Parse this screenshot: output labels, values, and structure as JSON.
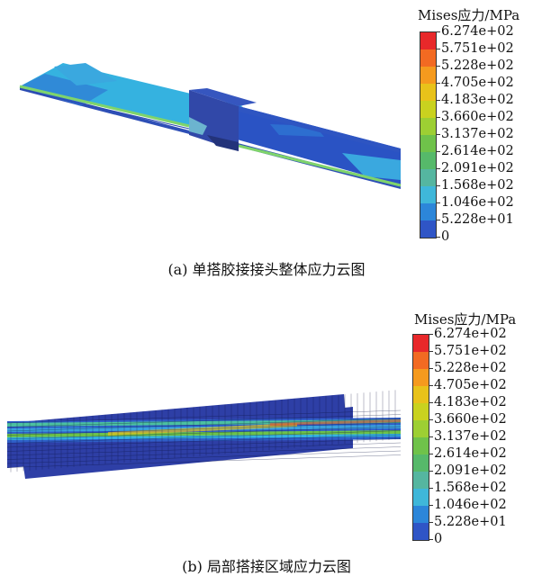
{
  "panel_a": {
    "legend_title": "Mises应力/MPa",
    "caption": "(a) 单搭胶接接头整体应力云图"
  },
  "panel_b": {
    "legend_title": "Mises应力/MPa",
    "caption": "(b) 局部搭接区域应力云图"
  },
  "legend_ticks": [
    "6.274e+02",
    "5.751e+02",
    "5.228e+02",
    "4.705e+02",
    "4.183e+02",
    "3.660e+02",
    "3.137e+02",
    "2.614e+02",
    "2.091e+02",
    "1.568e+02",
    "1.046e+02",
    "5.228e+01",
    "0"
  ],
  "legend_colors": [
    "#e8282a",
    "#f26a22",
    "#f59a1e",
    "#e8c21a",
    "#c9d21f",
    "#9dcf33",
    "#6fc24a",
    "#56b96a",
    "#55b6a0",
    "#3fb7d9",
    "#2c86d9",
    "#2f55c6"
  ]
}
